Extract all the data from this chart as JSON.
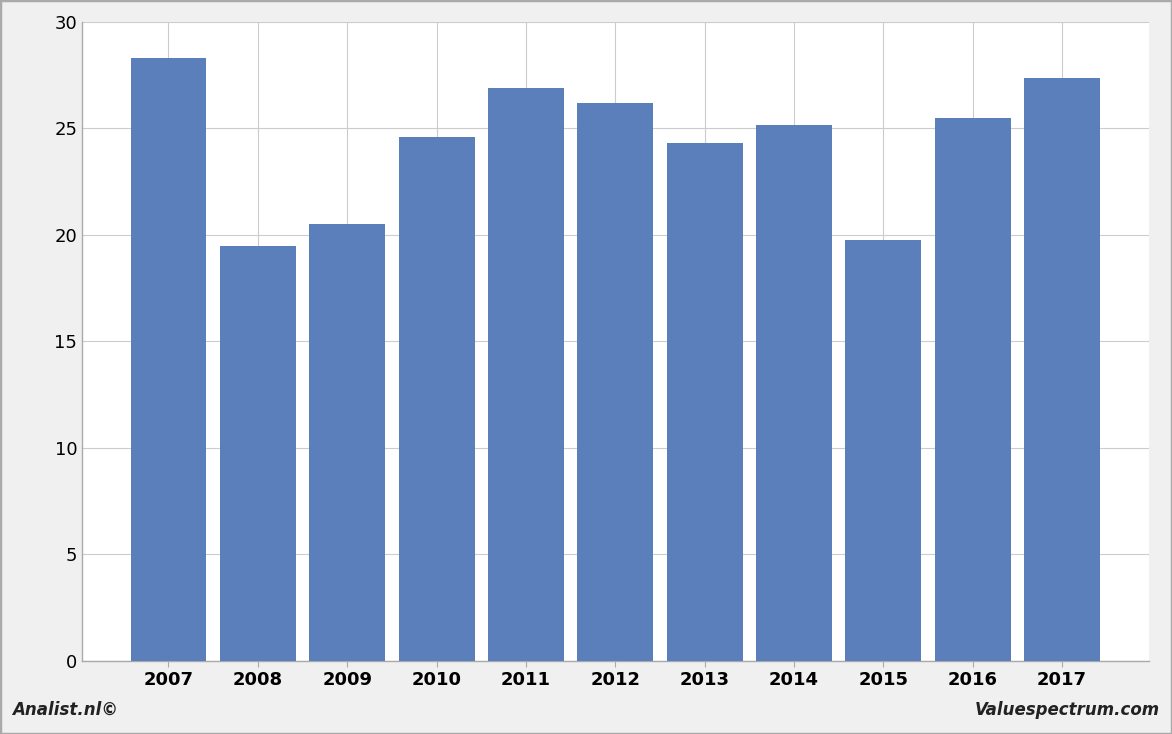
{
  "categories": [
    "2007",
    "2008",
    "2009",
    "2010",
    "2011",
    "2012",
    "2013",
    "2014",
    "2015",
    "2016",
    "2017"
  ],
  "values": [
    28.3,
    19.5,
    20.5,
    24.6,
    26.9,
    26.2,
    24.3,
    25.15,
    19.75,
    25.5,
    27.35
  ],
  "bar_color": "#5b7fbb",
  "ylim": [
    0,
    30
  ],
  "yticks": [
    0,
    5,
    10,
    15,
    20,
    25,
    30
  ],
  "background_color": "#f0f0f0",
  "plot_bg_color": "#ffffff",
  "grid_color": "#cccccc",
  "footer_left": "Analist.nl©",
  "footer_right": "Valuespectrum.com",
  "border_color": "#aaaaaa",
  "bar_width": 0.85
}
